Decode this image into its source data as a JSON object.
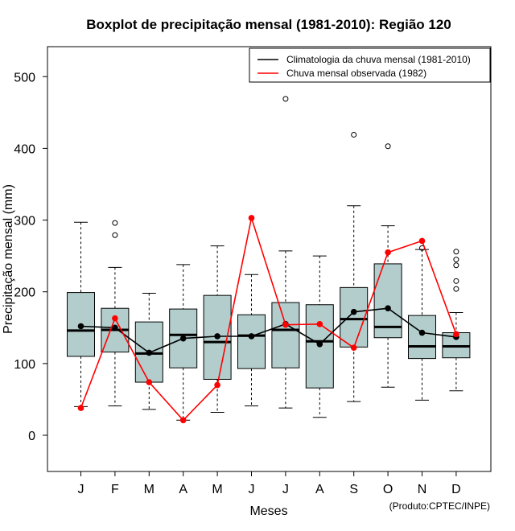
{
  "chart_data": {
    "type": "boxplot",
    "title": "Boxplot de precipitação mensal (1981-2010): Região 120",
    "xlabel": "Meses",
    "ylabel": "Precipitação mensal (mm)",
    "ylim": [
      -50,
      540
    ],
    "yticks": [
      0,
      100,
      200,
      300,
      400,
      500
    ],
    "categories": [
      "J",
      "F",
      "M",
      "A",
      "M",
      "J",
      "J",
      "A",
      "S",
      "O",
      "N",
      "D"
    ],
    "boxes": [
      {
        "whisker_low": 40,
        "q1": 110,
        "median": 146,
        "q3": 199,
        "whisker_high": 297,
        "outliers": []
      },
      {
        "whisker_low": 41,
        "q1": 116,
        "median": 147,
        "q3": 177,
        "whisker_high": 234,
        "outliers": [
          279,
          296
        ]
      },
      {
        "whisker_low": 36,
        "q1": 74,
        "median": 114,
        "q3": 158,
        "whisker_high": 198,
        "outliers": []
      },
      {
        "whisker_low": 21,
        "q1": 94,
        "median": 140,
        "q3": 176,
        "whisker_high": 238,
        "outliers": []
      },
      {
        "whisker_low": 32,
        "q1": 78,
        "median": 130,
        "q3": 195,
        "whisker_high": 264,
        "outliers": []
      },
      {
        "whisker_low": 41,
        "q1": 93,
        "median": 139,
        "q3": 168,
        "whisker_high": 224,
        "outliers": []
      },
      {
        "whisker_low": 38,
        "q1": 94,
        "median": 147,
        "q3": 185,
        "whisker_high": 257,
        "outliers": [
          469
        ]
      },
      {
        "whisker_low": 25,
        "q1": 66,
        "median": 131,
        "q3": 182,
        "whisker_high": 250,
        "outliers": []
      },
      {
        "whisker_low": 47,
        "q1": 123,
        "median": 162,
        "q3": 206,
        "whisker_high": 320,
        "outliers": [
          419
        ]
      },
      {
        "whisker_low": 67,
        "q1": 136,
        "median": 151,
        "q3": 239,
        "whisker_high": 292,
        "outliers": [
          403
        ]
      },
      {
        "whisker_low": 49,
        "q1": 107,
        "median": 124,
        "q3": 167,
        "whisker_high": 259,
        "outliers": [
          261
        ]
      },
      {
        "whisker_low": 62,
        "q1": 108,
        "median": 124,
        "q3": 143,
        "whisker_high": 171,
        "outliers": [
          204,
          215,
          237,
          245,
          256
        ]
      }
    ],
    "series": [
      {
        "name": "Climatologia da chuva mensal (1981-2010)",
        "color": "#000000",
        "values": [
          152,
          150,
          115,
          135,
          138,
          138,
          155,
          127,
          172,
          177,
          143,
          137
        ]
      },
      {
        "name": "Chuva mensal observada (1982)",
        "color": "#ff0000",
        "values": [
          38,
          163,
          74,
          21,
          70,
          303,
          154,
          155,
          122,
          255,
          271,
          141
        ]
      }
    ],
    "legend_position": "top-right",
    "box_fill": "#b3cdcd",
    "credit": "(Produto:CPTEC/INPE)"
  }
}
